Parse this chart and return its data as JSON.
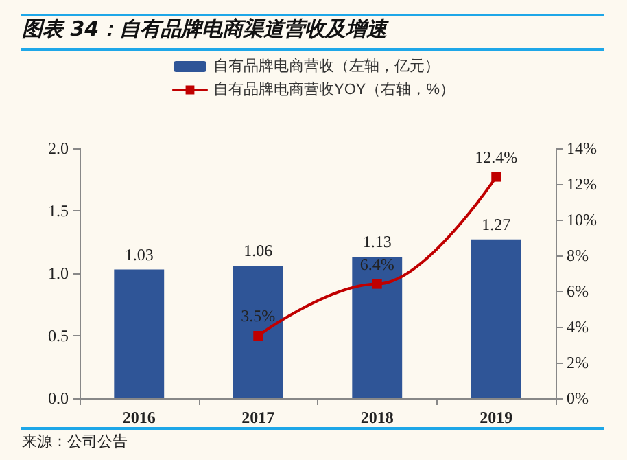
{
  "chart_data": {
    "type": "bar",
    "title": "图表 34：自有品牌电商渠道营收及增速",
    "categories": [
      "2016",
      "2017",
      "2018",
      "2019"
    ],
    "series": [
      {
        "name": "自有品牌电商营收（左轴，亿元）",
        "color": "#2f5597",
        "values": [
          1.03,
          1.06,
          1.13,
          1.27
        ],
        "value_labels": [
          "1.03",
          "1.06",
          "1.13",
          "1.27"
        ]
      },
      {
        "name": "自有品牌电商营收YOY（右轴，%）",
        "type": "line",
        "axis": "y2",
        "color": "#c00000",
        "marker": "square",
        "values": [
          null,
          3.5,
          6.4,
          12.4
        ],
        "value_labels": [
          null,
          "3.5%",
          "6.4%",
          "12.4%"
        ]
      }
    ],
    "ylim": [
      0,
      2
    ],
    "yticks": [
      {
        "value": 0,
        "label": "0.0"
      },
      0.5,
      {
        "value": 1,
        "label": "1.0"
      },
      1.5,
      {
        "value": 2,
        "label": "2.0"
      }
    ],
    "y2lim": [
      0,
      14
    ],
    "y2ticks": [
      {
        "value": 0,
        "label": "0%"
      },
      {
        "value": 2,
        "label": "2%"
      },
      {
        "value": 4,
        "label": "4%"
      },
      {
        "value": 6,
        "label": "6%"
      },
      {
        "value": 8,
        "label": "8%"
      },
      {
        "value": 10,
        "label": "10%"
      },
      {
        "value": 12,
        "label": "12%"
      },
      {
        "value": 14,
        "label": "14%"
      }
    ],
    "grid": false,
    "legend": "top",
    "annotations": [
      "来源：公司公告"
    ]
  }
}
